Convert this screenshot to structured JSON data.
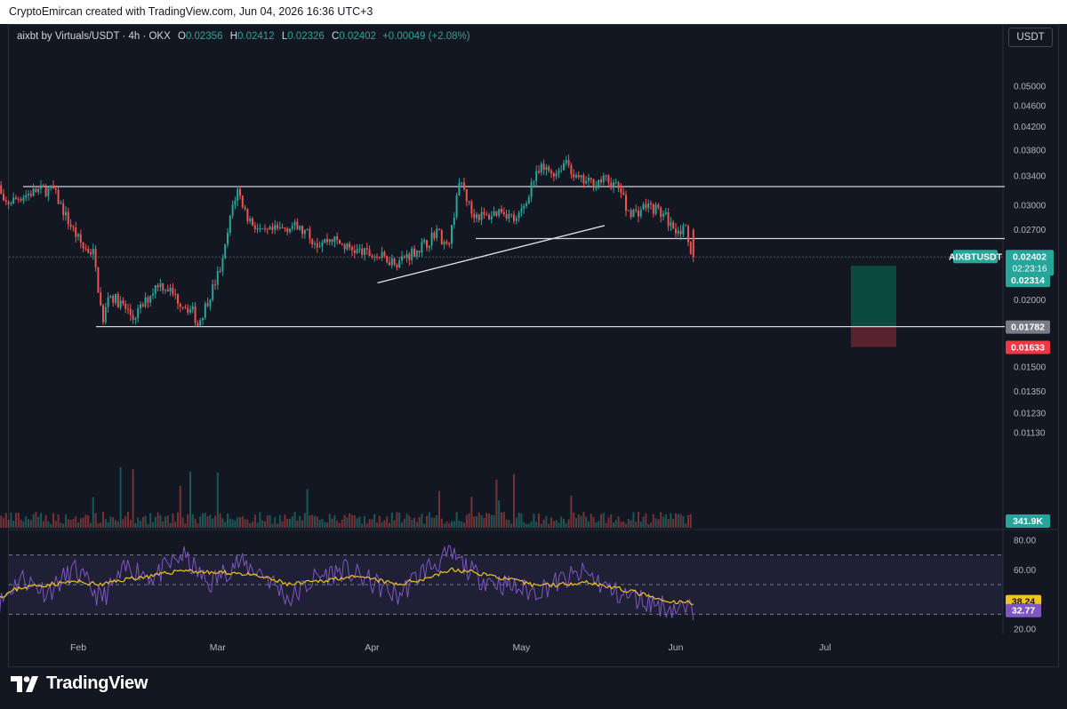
{
  "header": {
    "attribution": "CryptoEmircan created with TradingView.com, Jun 04, 2026 16:36 UTC+3"
  },
  "legend": {
    "symbol": "aixbt by Virtuals/USDT · 4h · OKX",
    "open_label": "O",
    "open": "0.02356",
    "high_label": "H",
    "high": "0.02412",
    "low_label": "L",
    "low": "0.02326",
    "close_label": "C",
    "close": "0.02402",
    "change": "+0.00049 (+2.08%)"
  },
  "currency_button": "USDT",
  "brand": {
    "name": "TradingView"
  },
  "colors": {
    "background": "#131722",
    "up": "#26a69a",
    "down": "#ef5350",
    "rsi_line": "#7e57c2",
    "rsi_ma": "#f0c419",
    "position_target": "#0b4a3f",
    "position_stop": "#5a222b"
  },
  "chart_data": [
    {
      "type": "candlestick",
      "title": "aixbt by Virtuals/USDT · 4h · OKX",
      "x_labels": [
        "Feb",
        "Mar",
        "Apr",
        "May",
        "Jun",
        "Jul"
      ],
      "y_ticks": [
        "0.05000",
        "0.04600",
        "0.04200",
        "0.03800",
        "0.03400",
        "0.03000",
        "0.02700",
        "0.02000",
        "0.01500",
        "0.01350",
        "0.01230",
        "0.01130"
      ],
      "y_scale": "log",
      "close_path": [
        [
          "Jan 15",
          0.035
        ],
        [
          "Jan 17",
          0.03
        ],
        [
          "Jan 20",
          0.031
        ],
        [
          "Jan 24",
          0.032
        ],
        [
          "Jan 27",
          0.032
        ],
        [
          "Jan 30",
          0.028
        ],
        [
          "Feb 02",
          0.025
        ],
        [
          "Feb 04",
          0.0245
        ],
        [
          "Feb 06",
          0.018
        ],
        [
          "Feb 07",
          0.0205
        ],
        [
          "Feb 10",
          0.0195
        ],
        [
          "Feb 12",
          0.0185
        ],
        [
          "Feb 14",
          0.0195
        ],
        [
          "Feb 17",
          0.0215
        ],
        [
          "Feb 19",
          0.021
        ],
        [
          "Feb 21",
          0.02
        ],
        [
          "Feb 24",
          0.019
        ],
        [
          "Feb 25",
          0.018
        ],
        [
          "Feb 28",
          0.021
        ],
        [
          "Mar 02",
          0.0235
        ],
        [
          "Mar 04",
          0.03
        ],
        [
          "Mar 05",
          0.032
        ],
        [
          "Mar 07",
          0.0285
        ],
        [
          "Mar 10",
          0.0265
        ],
        [
          "Mar 13",
          0.027
        ],
        [
          "Mar 16",
          0.0275
        ],
        [
          "Mar 19",
          0.0265
        ],
        [
          "Mar 21",
          0.0255
        ],
        [
          "Mar 24",
          0.026
        ],
        [
          "Mar 27",
          0.025
        ],
        [
          "Mar 30",
          0.0245
        ],
        [
          "Apr 03",
          0.024
        ],
        [
          "Apr 06",
          0.0235
        ],
        [
          "Apr 09",
          0.0245
        ],
        [
          "Apr 12",
          0.0255
        ],
        [
          "Apr 14",
          0.027
        ],
        [
          "Apr 16",
          0.025
        ],
        [
          "Apr 17",
          0.027
        ],
        [
          "Apr 18",
          0.0315
        ],
        [
          "Apr 19",
          0.033
        ],
        [
          "Apr 21",
          0.029
        ],
        [
          "Apr 24",
          0.0285
        ],
        [
          "Apr 27",
          0.0295
        ],
        [
          "Apr 30",
          0.028
        ],
        [
          "May 02",
          0.0305
        ],
        [
          "May 03",
          0.033
        ],
        [
          "May 05",
          0.035
        ],
        [
          "May 08",
          0.0345
        ],
        [
          "May 10",
          0.0365
        ],
        [
          "May 12",
          0.0335
        ],
        [
          "May 15",
          0.033
        ],
        [
          "May 18",
          0.0335
        ],
        [
          "May 21",
          0.032
        ],
        [
          "May 22",
          0.0295
        ],
        [
          "May 24",
          0.029
        ],
        [
          "May 26",
          0.03
        ],
        [
          "May 28",
          0.0295
        ],
        [
          "May 30",
          0.0285
        ],
        [
          "May 31",
          0.0275
        ],
        [
          "Jun 02",
          0.027
        ],
        [
          "Jun 03",
          0.0268
        ],
        [
          "Jun 04",
          0.02402
        ]
      ],
      "horizontal_levels": [
        0.0325,
        0.026,
        0.01782
      ],
      "trendline": {
        "from": [
          "Apr 03",
          0.0215
        ],
        "to": [
          "May 17",
          0.0275
        ]
      },
      "position_tool": {
        "side": "long",
        "entry": "0.01782",
        "target": "0.02314",
        "stop": "0.01633"
      },
      "price_labels": {
        "symbol_tag": "AIXBTUSDT",
        "last_price": "0.02402",
        "countdown": "02:23:16",
        "target": "0.02314",
        "entry": "0.01782",
        "stop": "0.01633"
      },
      "volume": {
        "last_value": "341.9K"
      }
    },
    {
      "type": "line",
      "title": "RSI",
      "y_ticks": [
        "80.00",
        "60.00",
        "20.00"
      ],
      "band": [
        30,
        70
      ],
      "series": [
        {
          "values": [
            32,
            55,
            45,
            60,
            40,
            62,
            55,
            70,
            50,
            65,
            58,
            40,
            55,
            60,
            52,
            42,
            60,
            70,
            55,
            50,
            45,
            52,
            58,
            45,
            40,
            35,
            32
          ]
        },
        {
          "values": [
            40,
            48,
            50,
            52,
            50,
            54,
            56,
            60,
            58,
            58,
            55,
            50,
            52,
            55,
            54,
            50,
            54,
            60,
            58,
            54,
            50,
            50,
            52,
            48,
            44,
            38,
            38
          ]
        }
      ],
      "labels": {
        "ma": "38.24",
        "rsi": "32.77"
      }
    }
  ]
}
